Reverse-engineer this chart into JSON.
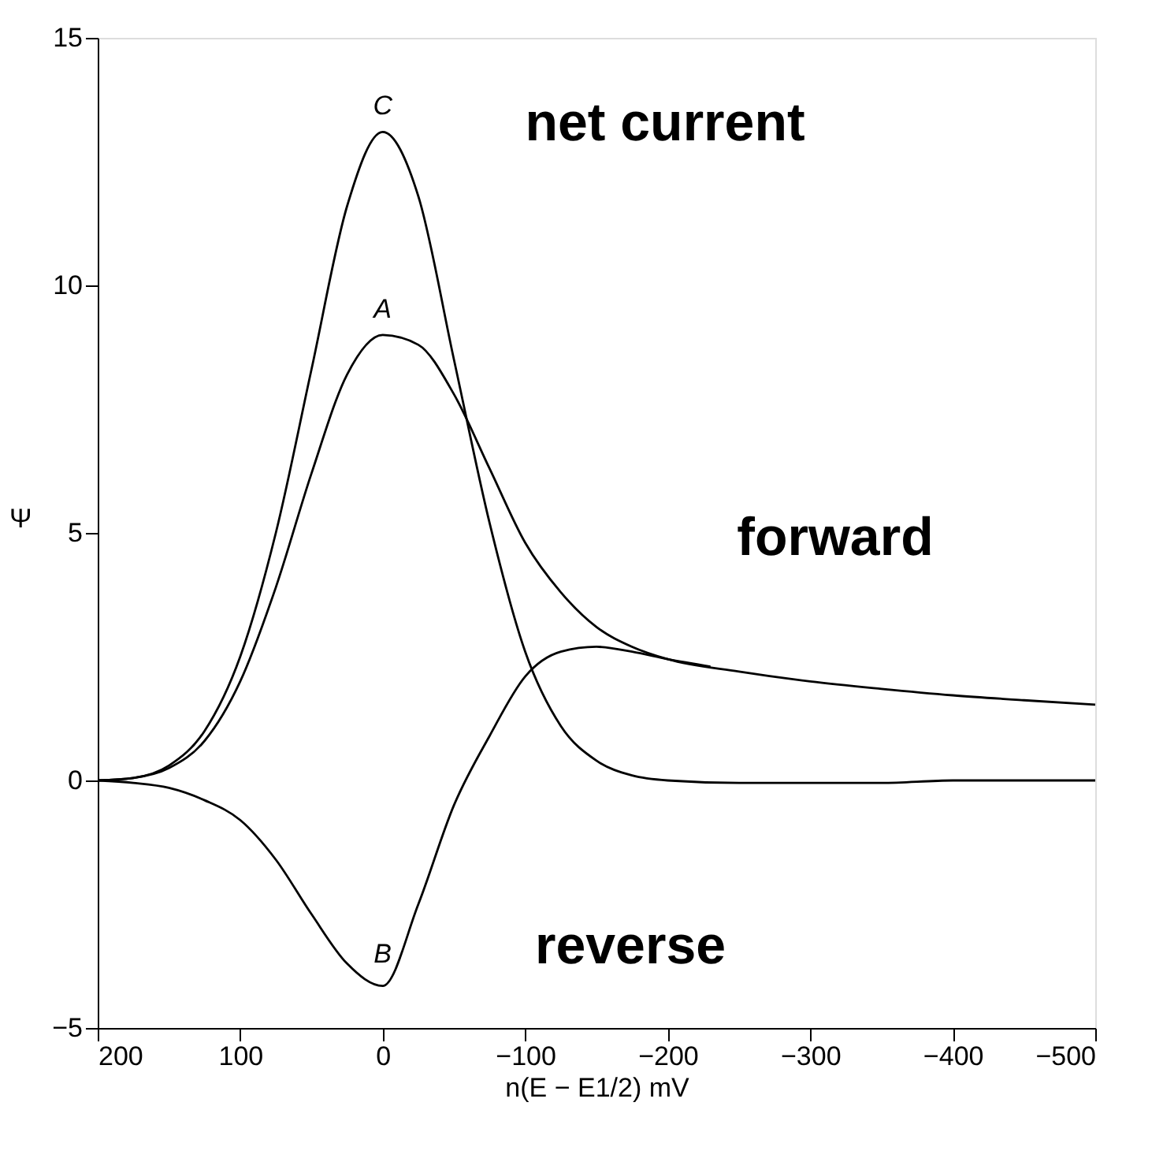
{
  "chart_data": {
    "type": "line",
    "xlabel": "n(E − E1/2) mV",
    "ylabel": "Ψ",
    "x": [
      200,
      175,
      150,
      125,
      100,
      75,
      50,
      25,
      0,
      -25,
      -50,
      -75,
      -100,
      -125,
      -150,
      -175,
      -200,
      -250,
      -300,
      -350,
      -400,
      -450,
      -500
    ],
    "series": [
      {
        "color": "#000000",
        "values": [
          0,
          0.05,
          0.3,
          1.0,
          2.5,
          5.0,
          8.3,
          11.6,
          13.1,
          11.8,
          8.5,
          5.2,
          2.6,
          1.1,
          0.4,
          0.1,
          0.0,
          -0.05,
          -0.05,
          -0.05,
          0,
          0,
          0
        ]
      },
      {
        "color": "#000000",
        "values": [
          0,
          0.05,
          0.25,
          0.8,
          2.0,
          3.9,
          6.2,
          8.2,
          9.0,
          8.8,
          7.8,
          6.3,
          4.8,
          3.8,
          3.1,
          2.7,
          2.45,
          2.2,
          2.0,
          1.85,
          1.72,
          1.62,
          1.53
        ]
      },
      {
        "color": "#000000",
        "x": [
          200,
          175,
          150,
          125,
          100,
          75,
          50,
          25,
          0,
          -25,
          -50,
          -75,
          -100,
          -125,
          -150,
          -175,
          -200,
          -230
        ],
        "values": [
          0,
          -0.05,
          -0.15,
          -0.4,
          -0.8,
          -1.6,
          -2.7,
          -3.7,
          -4.15,
          -2.5,
          -0.5,
          0.9,
          2.1,
          2.6,
          2.7,
          2.6,
          2.45,
          2.3
        ]
      }
    ],
    "xlim": [
      200,
      -500
    ],
    "xticks": [
      200,
      100,
      0,
      -100,
      -200,
      -300,
      -400,
      -500
    ],
    "ylim": [
      -5,
      15
    ],
    "yticks": [
      -5,
      0,
      5,
      10,
      15
    ],
    "grid": false,
    "legend": false,
    "annotations": [
      "C",
      "A",
      "B",
      "net current",
      "forward",
      "reverse"
    ]
  }
}
